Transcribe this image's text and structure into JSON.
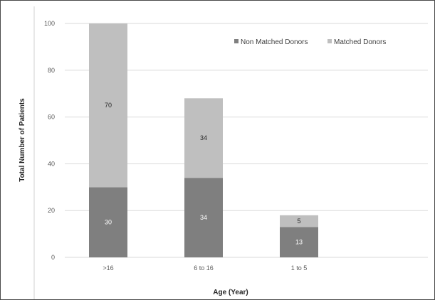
{
  "chart_data": {
    "type": "bar",
    "stacked": true,
    "categories": [
      ">16",
      "6 to 16",
      "1 to 5"
    ],
    "series": [
      {
        "name": "Non Matched Donors",
        "values": [
          30,
          34,
          13
        ],
        "color": "#7f7f7f"
      },
      {
        "name": "Matched Donors",
        "values": [
          70,
          34,
          5
        ],
        "color": "#bfbfbf"
      }
    ],
    "xlabel": "Age (Year)",
    "ylabel": "Total Number of Patients",
    "ylim": [
      0,
      100
    ],
    "yticks": [
      "0",
      "20",
      "40",
      "60",
      "80",
      "100"
    ],
    "grid": true,
    "legend": "top-right"
  }
}
